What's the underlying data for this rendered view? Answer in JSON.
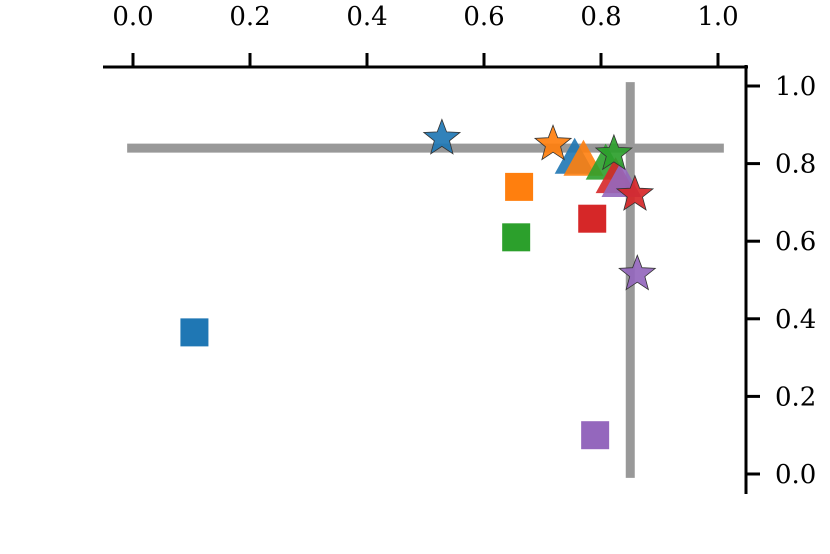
{
  "chart_data": {
    "type": "scatter",
    "title": "",
    "xlabel": "",
    "ylabel": "",
    "xlim": [
      -0.05,
      1.05
    ],
    "ylim": [
      -0.05,
      1.05
    ],
    "x_axis_position": "top",
    "y_axis_position": "right",
    "grid": false,
    "xticks": [
      0.0,
      0.2,
      0.4,
      0.6,
      0.8,
      1.0
    ],
    "xtick_labels": [
      "0.0",
      "0.2",
      "0.4",
      "0.6",
      "0.8",
      "1.0"
    ],
    "yticks": [
      0.0,
      0.2,
      0.4,
      0.6,
      0.8,
      1.0
    ],
    "ytick_labels": [
      "0.0",
      "0.2",
      "0.4",
      "0.6",
      "0.8",
      "1.0"
    ],
    "reference_lines": {
      "horizontal": {
        "y": 0.84,
        "x_range": [
          -0.01,
          1.01
        ],
        "color": "#999999"
      },
      "vertical": {
        "x": 0.85,
        "y_range": [
          -0.01,
          1.01
        ],
        "color": "#999999"
      }
    },
    "colors": {
      "blue": "#1f77b4",
      "orange": "#ff7f0e",
      "green": "#2ca02c",
      "red": "#d62728",
      "purple": "#9467bd"
    },
    "points": [
      {
        "color": "blue",
        "marker": "square",
        "x": 0.105,
        "y": 0.365
      },
      {
        "color": "orange",
        "marker": "square",
        "x": 0.66,
        "y": 0.74
      },
      {
        "color": "green",
        "marker": "square",
        "x": 0.655,
        "y": 0.61
      },
      {
        "color": "red",
        "marker": "square",
        "x": 0.785,
        "y": 0.658
      },
      {
        "color": "purple",
        "marker": "square",
        "x": 0.79,
        "y": 0.1
      },
      {
        "color": "blue",
        "marker": "triangle",
        "x": 0.755,
        "y": 0.815
      },
      {
        "color": "orange",
        "marker": "triangle",
        "x": 0.77,
        "y": 0.81
      },
      {
        "color": "green",
        "marker": "triangle",
        "x": 0.808,
        "y": 0.8
      },
      {
        "color": "red",
        "marker": "triangle",
        "x": 0.825,
        "y": 0.765
      },
      {
        "color": "purple",
        "marker": "triangle",
        "x": 0.835,
        "y": 0.755
      },
      {
        "color": "blue",
        "marker": "star",
        "x": 0.528,
        "y": 0.865
      },
      {
        "color": "orange",
        "marker": "star",
        "x": 0.718,
        "y": 0.85
      },
      {
        "color": "green",
        "marker": "star",
        "x": 0.822,
        "y": 0.825
      },
      {
        "color": "red",
        "marker": "star",
        "x": 0.858,
        "y": 0.72
      },
      {
        "color": "purple",
        "marker": "star",
        "x": 0.862,
        "y": 0.515
      }
    ]
  }
}
